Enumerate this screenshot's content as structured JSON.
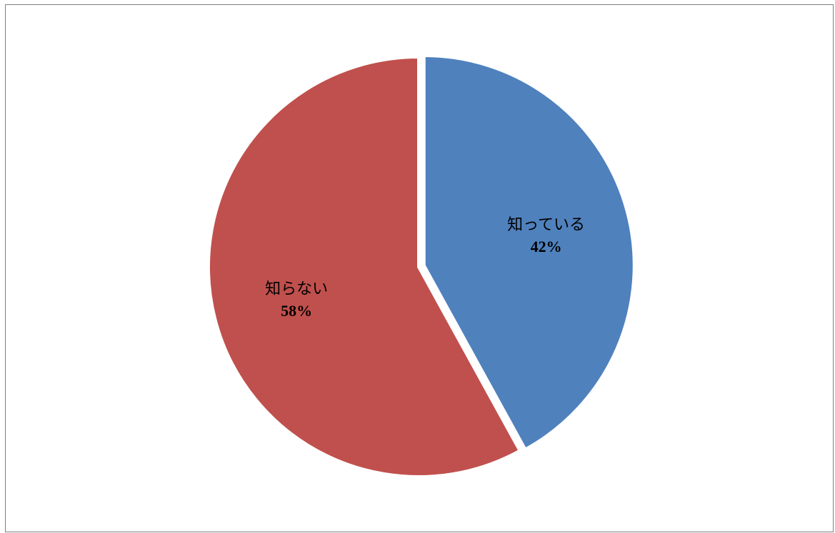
{
  "chart_data": {
    "type": "pie",
    "slices": [
      {
        "label": "知っている",
        "value": 42,
        "value_label": "42%",
        "color": "#4F81BD",
        "exploded": true
      },
      {
        "label": "知らない",
        "value": 58,
        "value_label": "58%",
        "color": "#C0504D",
        "exploded": false
      }
    ],
    "start": "12 o'clock",
    "direction": "clockwise",
    "legend": "none",
    "data_labels": "inside"
  }
}
